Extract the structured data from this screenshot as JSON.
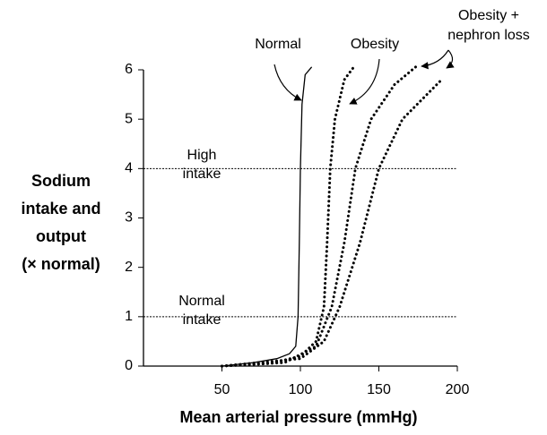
{
  "chart_data": {
    "type": "line",
    "xlabel": "Mean arterial pressure (mmHg)",
    "ylabel": [
      "Sodium",
      "intake and",
      "output",
      "(× normal)"
    ],
    "xlim": [
      0,
      200
    ],
    "xticks": [
      50,
      100,
      150,
      200
    ],
    "ylim": [
      0,
      6
    ],
    "yticks": [
      0,
      1,
      2,
      3,
      4,
      5,
      6
    ],
    "ref_lines": [
      {
        "value": 4,
        "label": [
          "High",
          "intake"
        ]
      },
      {
        "value": 1,
        "label": [
          "Normal",
          "intake"
        ]
      }
    ],
    "series": [
      {
        "name": "Normal",
        "color": "#000000",
        "dash": "solid",
        "x": [
          50,
          70,
          85,
          93,
          97,
          98.5,
          99.3,
          100,
          101,
          103,
          107
        ],
        "values": [
          0,
          0.07,
          0.15,
          0.25,
          0.4,
          1,
          2.5,
          4,
          5.3,
          5.9,
          6.05
        ]
      },
      {
        "name": "Obesity",
        "color": "#000000",
        "dash": "dotted",
        "x": [
          50,
          80,
          100,
          110,
          115,
          117,
          119,
          122,
          128,
          135
        ],
        "values": [
          0,
          0.05,
          0.2,
          0.5,
          1.2,
          2.5,
          4,
          5,
          5.8,
          6.1
        ]
      },
      {
        "name": "Obesity + nephron loss",
        "color": "#000000",
        "dash": "dotted",
        "x": [
          50,
          90,
          110,
          120,
          128,
          135,
          145,
          160,
          175
        ],
        "values": [
          0,
          0.07,
          0.4,
          1.2,
          2.5,
          4,
          5,
          5.7,
          6.1
        ]
      },
      {
        "color": "#000000",
        "dash": "dotted",
        "x": [
          50,
          100,
          115,
          125,
          138,
          150,
          165,
          190
        ],
        "values": [
          0,
          0.15,
          0.5,
          1.2,
          2.5,
          4,
          5,
          5.8
        ]
      }
    ]
  }
}
